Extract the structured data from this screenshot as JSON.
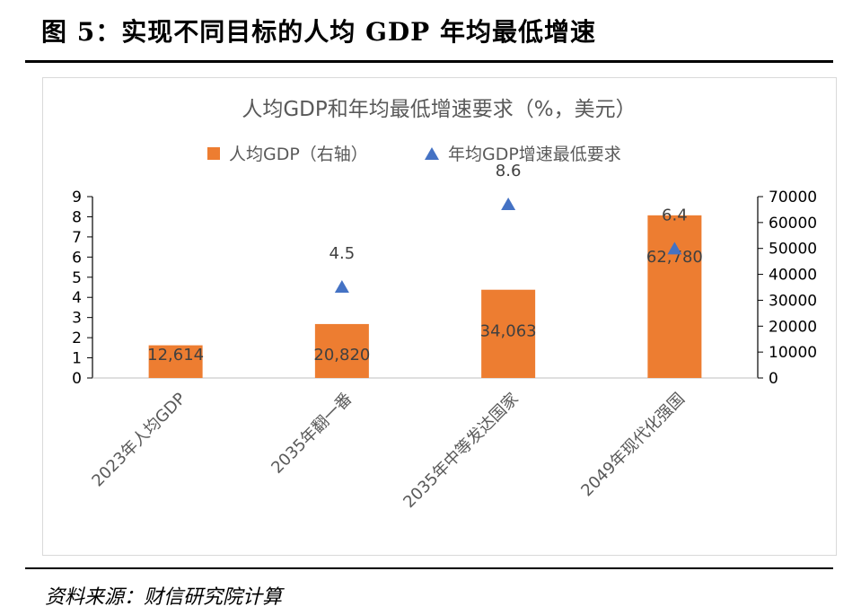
{
  "figure": {
    "title": "图 5：实现不同目标的人均 GDP 年均最低增速",
    "source": "资料来源：财信研究院计算"
  },
  "chart_data": {
    "type": "bar",
    "title": "人均GDP和年均最低增速要求（%，美元）",
    "categories": [
      "2023年人均GDP",
      "2035年翻一番",
      "2035年中等发达国家",
      "2049年现代化强国"
    ],
    "series": [
      {
        "name": "人均GDP（右轴）",
        "kind": "bar",
        "axis": "right",
        "values": [
          12614,
          20820,
          34063,
          62780
        ],
        "labels": [
          "12,614",
          "20,820",
          "34,063",
          "62,780"
        ],
        "color": "#ED7D31"
      },
      {
        "name": "年均GDP增速最低要求",
        "kind": "marker",
        "marker": "triangle",
        "axis": "left",
        "values": [
          null,
          4.5,
          8.6,
          6.4
        ],
        "labels": [
          "",
          "4.5",
          "8.6",
          "6.4"
        ],
        "color": "#4472C4"
      }
    ],
    "left_axis": {
      "ylim": [
        0,
        9
      ],
      "ticks": [
        "0",
        "1",
        "2",
        "3",
        "4",
        "5",
        "6",
        "7",
        "8",
        "9"
      ]
    },
    "right_axis": {
      "ylim": [
        0,
        70000
      ],
      "ticks": [
        "0",
        "10000",
        "20000",
        "30000",
        "40000",
        "50000",
        "60000",
        "70000"
      ]
    },
    "legend": "top",
    "grid": false
  }
}
